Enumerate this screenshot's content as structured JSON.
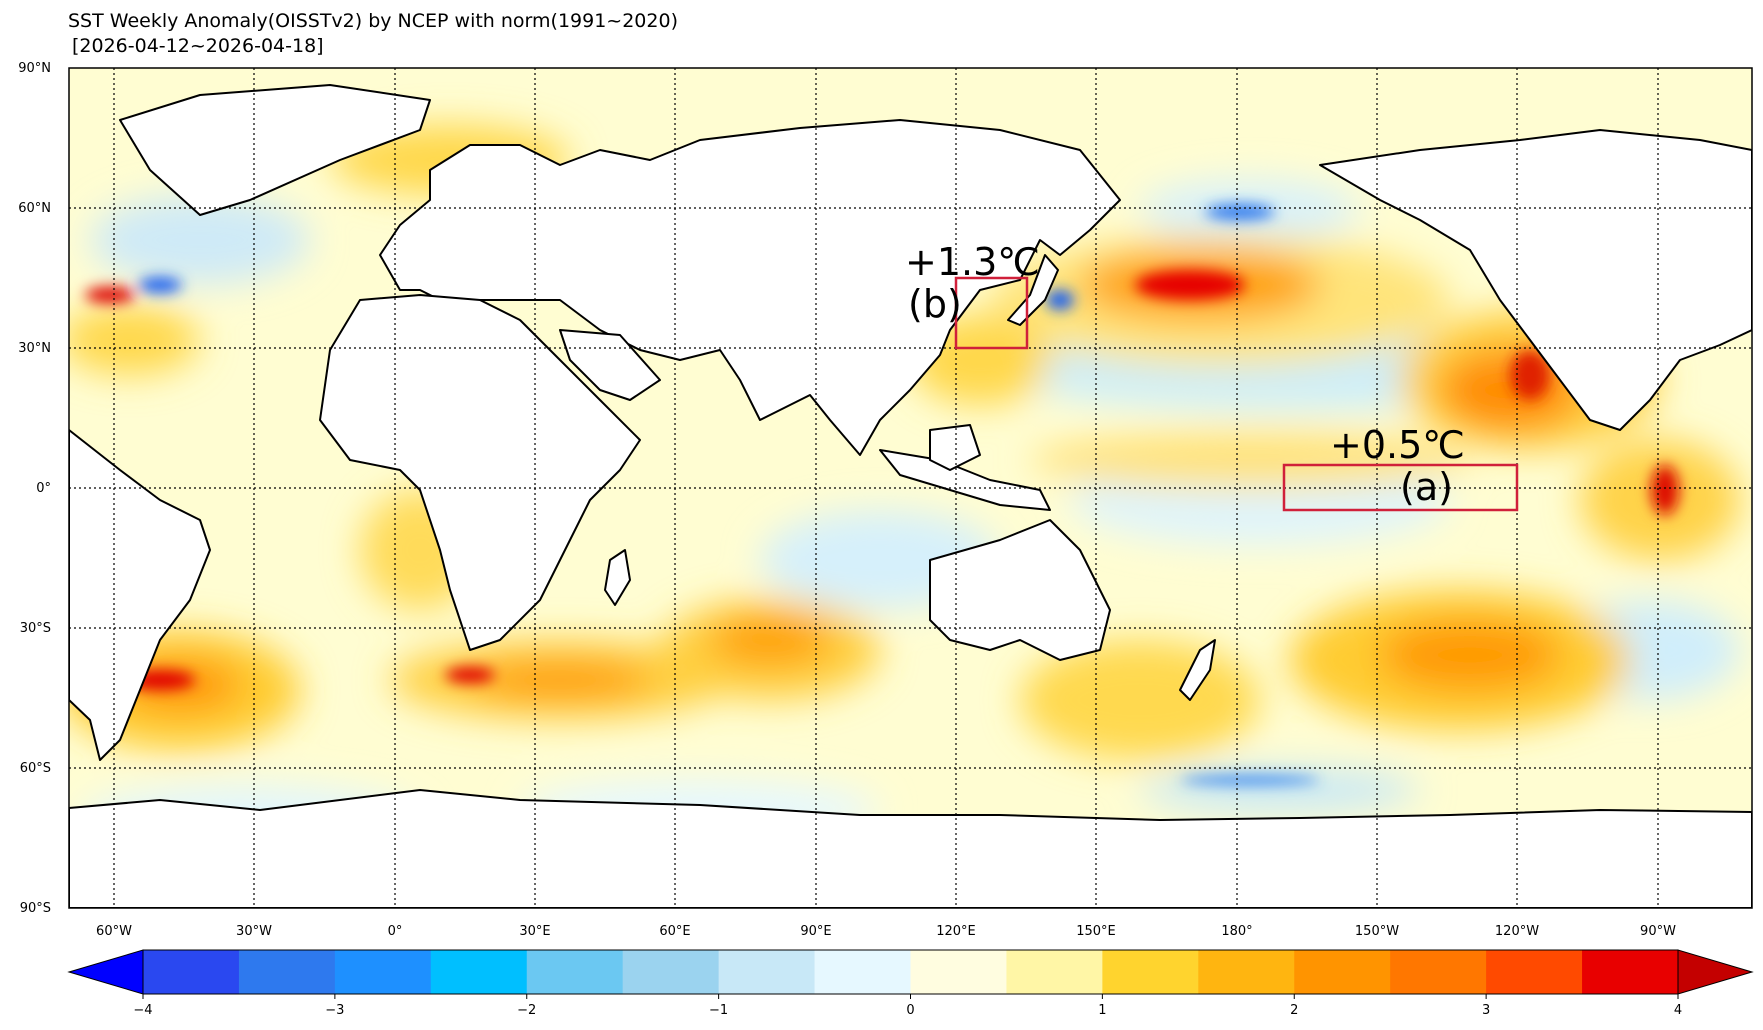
{
  "header": {
    "title": "SST Weekly Anomaly(OISSTv2) by NCEP with norm(1991~2020)",
    "period": "[2026-04-12~2026-04-18]"
  },
  "map": {
    "lon_labels": [
      "60°W",
      "30°W",
      "0°",
      "30°E",
      "60°E",
      "90°E",
      "120°E",
      "150°E",
      "180°",
      "150°W",
      "120°W",
      "90°W"
    ],
    "lat_labels": [
      "90°N",
      "60°N",
      "30°N",
      "0°",
      "30°S",
      "60°S",
      "90°S"
    ],
    "ocean_base_color": "#fffdd2",
    "land_color": "#ffffff",
    "coast_color": "#000000"
  },
  "regions": [
    {
      "name": "(a)",
      "value_label": "+0.5℃",
      "box_color": "#d0203a"
    },
    {
      "name": "(b)",
      "value_label": "+1.3℃",
      "box_color": "#d0203a"
    }
  ],
  "colorbar": {
    "colors": [
      "#0000ff",
      "#2a48f0",
      "#2e79ee",
      "#1e90ff",
      "#00bfff",
      "#6bc8f2",
      "#9bd3ef",
      "#c8e8f7",
      "#e6f8ff",
      "#fffde0",
      "#fff6a6",
      "#ffd42e",
      "#ffb510",
      "#ff9400",
      "#ff7700",
      "#ff4a00",
      "#e80000",
      "#c40000"
    ],
    "tick_labels": [
      "−4",
      "−3",
      "−2",
      "−1",
      "0",
      "1",
      "2",
      "3",
      "4"
    ]
  }
}
